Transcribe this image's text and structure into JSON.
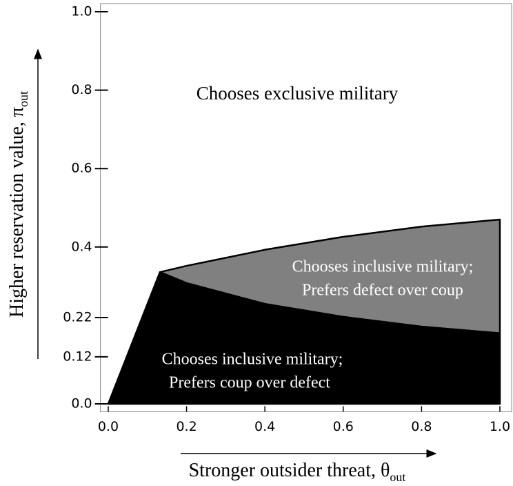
{
  "chart_data": {
    "type": "region",
    "xlabel": "Stronger outsider threat, θ",
    "xlabel_sub": "out",
    "ylabel": "Higher reservation value, π",
    "ylabel_sub": "out",
    "xlim": [
      -0.02,
      1.03
    ],
    "ylim": [
      -0.02,
      1.02
    ],
    "xticks": [
      {
        "value": 0,
        "label": "0.0"
      },
      0.2,
      0.4,
      0.6,
      0.8,
      {
        "value": 1,
        "label": "1.0"
      }
    ],
    "yticks": [
      {
        "value": 0,
        "label": "0.0"
      },
      0.12,
      0.22,
      0.4,
      0.6,
      0.8,
      {
        "value": 1,
        "label": "1.0"
      }
    ],
    "regions": [
      {
        "label": [
          "Chooses exclusive military"
        ],
        "color": "#ffffff"
      },
      {
        "label": [
          "Chooses inclusive military;",
          "Prefers defect over coup"
        ],
        "color": "#808080",
        "x": [
          0.132,
          0.2,
          0.4,
          0.6,
          0.8,
          1.0,
          1.0,
          0.8,
          0.6,
          0.4,
          0.2
        ],
        "y": [
          0.336,
          0.352,
          0.393,
          0.426,
          0.452,
          0.47,
          0.18,
          0.197,
          0.222,
          0.255,
          0.308
        ]
      },
      {
        "label": [
          "Chooses inclusive military;",
          "Prefers coup over defect"
        ],
        "color": "#000000",
        "x": [
          0,
          0.132,
          0.2,
          0.4,
          0.6,
          0.8,
          1.0,
          1.0
        ],
        "y": [
          0,
          0.336,
          0.308,
          0.255,
          0.222,
          0.197,
          0.18,
          0
        ]
      }
    ]
  }
}
